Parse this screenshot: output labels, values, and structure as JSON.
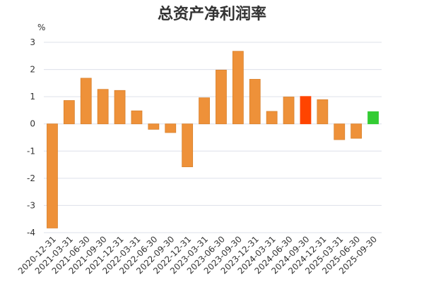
{
  "chart_data": {
    "type": "bar",
    "title": "总资产净利润率",
    "unit": "%",
    "ylim": [
      -4,
      3
    ],
    "yticks": [
      3,
      2,
      1,
      0,
      -1,
      -2,
      -3,
      -4
    ],
    "grid": true,
    "categories": [
      "2020-12-31",
      "2021-03-31",
      "2021-06-30",
      "2021-09-30",
      "2021-12-31",
      "2022-03-31",
      "2022-06-30",
      "2022-09-30",
      "2022-12-31",
      "2023-03-31",
      "2023-06-30",
      "2023-09-30",
      "2023-12-31",
      "2024-03-31",
      "2024-06-30",
      "2024-09-30",
      "2024-12-31",
      "2025-03-31",
      "2025-06-30",
      "2025-09-30"
    ],
    "values": [
      -3.83,
      0.86,
      1.68,
      1.27,
      1.23,
      0.48,
      -0.2,
      -0.32,
      -1.58,
      0.96,
      1.98,
      2.67,
      1.64,
      0.46,
      0.99,
      1.01,
      0.89,
      -0.58,
      -0.53,
      0.45
    ],
    "colors": {
      "default": "#ee9139",
      "default_stroke": "#d9822e",
      "highlight": "#ff4400",
      "highlight_index": 15,
      "latest": "#33cc33",
      "latest_index": 19,
      "grid": "#dde0ea",
      "axis": "#cccccc"
    }
  }
}
